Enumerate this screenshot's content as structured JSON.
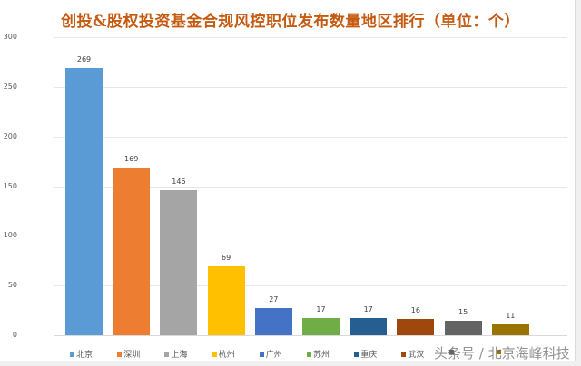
{
  "chart_data": {
    "type": "bar",
    "title": "创投&股权投资基金合规风控职位发布数量地区排行（单位：个）",
    "xlabel": "",
    "ylabel": "",
    "ylim": [
      0,
      300
    ],
    "yticks": [
      0,
      50,
      100,
      150,
      200,
      250,
      300
    ],
    "grid": true,
    "legend_position": "bottom",
    "categories": [
      "北京",
      "深圳",
      "上海",
      "杭州",
      "广州",
      "苏州",
      "重庆",
      "武汉",
      "",
      ""
    ],
    "values": [
      269,
      169,
      146,
      69,
      27,
      17,
      17,
      16,
      15,
      11
    ],
    "colors": [
      "#5B9BD5",
      "#ED7D31",
      "#A5A5A5",
      "#FFC000",
      "#4472C4",
      "#70AD47",
      "#255E91",
      "#9E480E",
      "#636363",
      "#997300"
    ],
    "data_labels": [
      "269",
      "169",
      "146",
      "69",
      "27",
      "17",
      "17",
      "16",
      "15",
      "11"
    ]
  },
  "watermark": "头条号 / 北京海峰科技"
}
